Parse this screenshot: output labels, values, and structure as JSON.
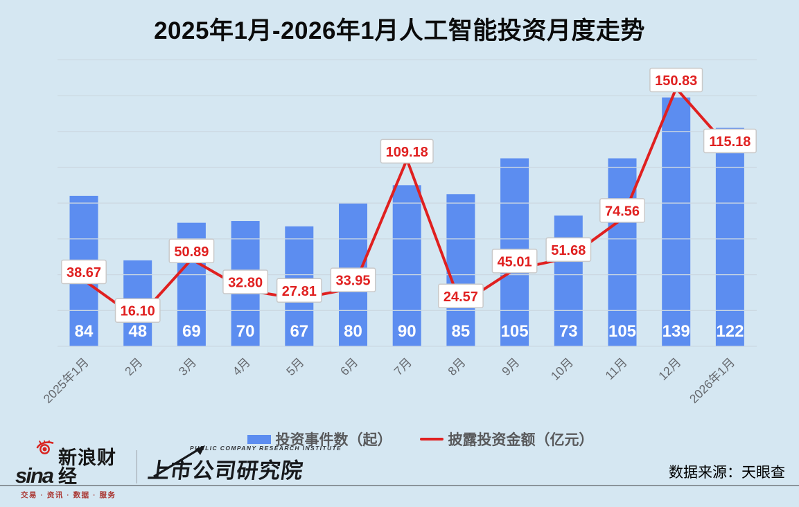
{
  "title": "2025年1月-2026年1月人工智能投资月度走势",
  "chart_data": {
    "type": "bar",
    "title": "2025年1月-2026年1月人工智能投资月度走势",
    "categories": [
      "2025年1月",
      "2月",
      "3月",
      "4月",
      "5月",
      "6月",
      "7月",
      "8月",
      "9月",
      "10月",
      "11月",
      "12月",
      "2026年1月"
    ],
    "series": [
      {
        "name": "投资事件数（起）",
        "type": "bar",
        "values": [
          84,
          48,
          69,
          70,
          67,
          80,
          90,
          85,
          105,
          73,
          105,
          139,
          122
        ]
      },
      {
        "name": "披露投资金额（亿元）",
        "type": "line",
        "values": [
          38.67,
          16.1,
          50.89,
          32.8,
          27.81,
          33.95,
          109.18,
          24.57,
          45.01,
          51.68,
          74.56,
          150.83,
          115.18
        ]
      }
    ],
    "xlabel": "",
    "ylabel": "",
    "bar_axis": {
      "min": 0,
      "max": 160,
      "grid_step": 20,
      "grid": true,
      "tick_labels_visible": false
    },
    "legend_position": "bottom",
    "bar_value_labels": "inside-bottom-white",
    "line_value_labels": "white-box-red-text"
  },
  "legend": {
    "bar_label": "投资事件数（起）",
    "line_label": "披露投资金额（亿元）"
  },
  "colors": {
    "background": "#d5e7f2",
    "bar": "#5c8df0",
    "line": "#e02020",
    "grid": "#ccd8e2",
    "bar_value_text": "#ffffff",
    "point_label_text": "#e02020",
    "point_label_box": "#ffffff",
    "point_label_border": "#c9c9c9",
    "tick_text": "#65686d"
  },
  "footer": {
    "sina_wordmark": "sina",
    "sina_name": "新浪财经",
    "sina_tagline": "交易 · 资讯 · 数据 · 服务",
    "institute_en": "PUBLIC COMPANY RESEARCH INSTITUTE",
    "institute_name": "上市公司研究院",
    "source": "数据来源：天眼查"
  }
}
